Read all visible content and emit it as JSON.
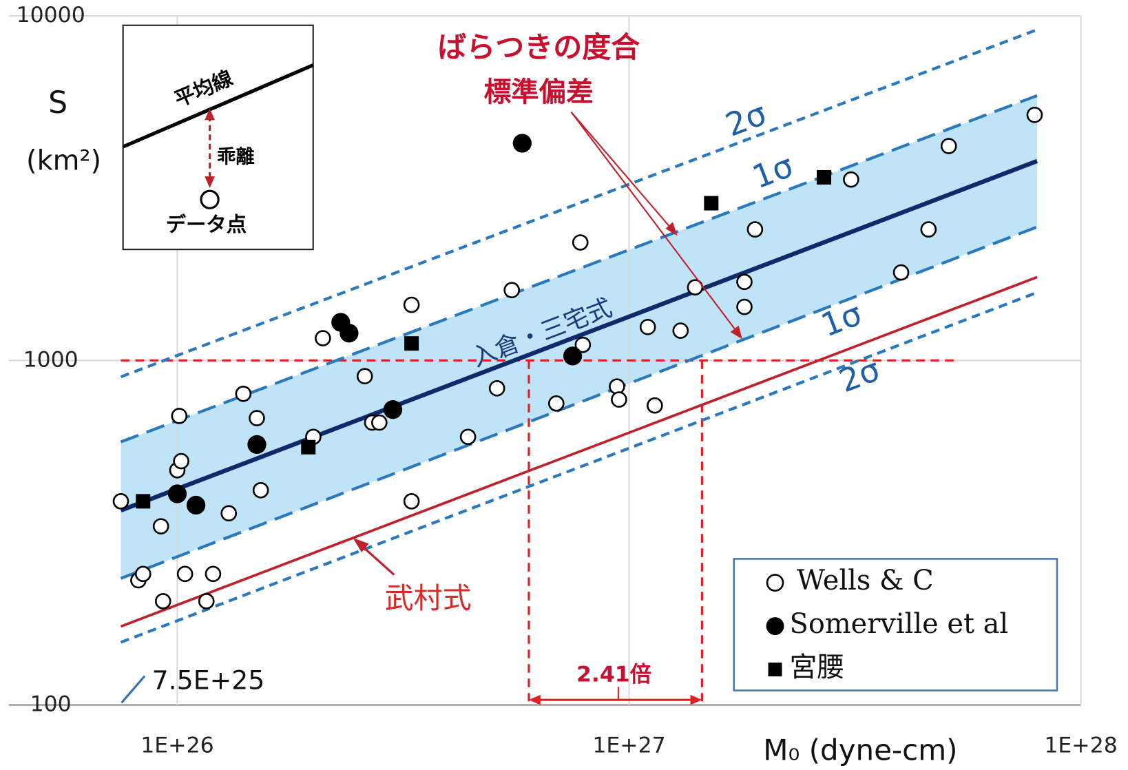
{
  "chart_data": {
    "type": "scatter",
    "log_x": true,
    "log_y": true,
    "grid": true,
    "xlim": [
      7.5e+25,
      1e+28
    ],
    "ylim": [
      100,
      10000
    ],
    "xticks": [
      {
        "value": 1e+26,
        "label": "1E+26"
      },
      {
        "value": 1e+27,
        "label": "1E+27"
      },
      {
        "value": 1e+28,
        "label": "1E+28"
      }
    ],
    "yticks": [
      100,
      1000,
      10000
    ],
    "xlabel": "M₀ (dyne-cm)",
    "ylabel": "S",
    "ylabel_unit": "(km²)",
    "series": [
      {
        "name": "Wells & C",
        "color": "#000000",
        "marker": "open-circle",
        "x": [
          7.5e+25,
          8.2e+25,
          8.4e+25,
          9.2e+25,
          9.3e+25,
          1e+26,
          1.02e+26,
          1.01e+26,
          1.04e+26,
          1.2e+26,
          1.16e+26,
          1.3e+26,
          1.4e+26,
          1.5e+26,
          1.53e+26,
          2e+26,
          2.1e+26,
          2.6e+26,
          2.7e+26,
          2.8e+26,
          3.3e+26,
          3.3e+26,
          4.4e+26,
          5.1e+26,
          5.5e+26,
          6.9e+26,
          7.8e+26,
          7.9e+26,
          9.4e+26,
          9.5e+26,
          1.1e+27,
          1.14e+27,
          1.3e+27,
          1.4e+27,
          1.8e+27,
          1.8e+27,
          1.9e+27,
          3.1e+27,
          4e+27,
          4.6e+27,
          5.1e+27,
          7.9e+27
        ],
        "values": [
          390,
          230,
          240,
          330,
          200,
          480,
          510,
          690,
          240,
          240,
          200,
          360,
          800,
          680,
          420,
          600,
          1160,
          900,
          660,
          660,
          1450,
          390,
          600,
          830,
          1600,
          750,
          2200,
          1110,
          840,
          770,
          1250,
          740,
          1220,
          1630,
          1690,
          1430,
          2400,
          3350,
          1800,
          2400,
          4190,
          5160
        ]
      },
      {
        "name": "Somerville et al",
        "color": "#000000",
        "marker": "filled-circle",
        "x": [
          1e+26,
          1.1e+26,
          1.5e+26,
          2.3e+26,
          2.4e+26,
          3e+26,
          5.8e+26,
          7.5e+26
        ],
        "values": [
          410,
          380,
          570,
          1290,
          1200,
          720,
          4270,
          1030
        ]
      },
      {
        "name": "宮腰",
        "color": "#000000",
        "marker": "square",
        "x": [
          8.4e+25,
          1.95e+26,
          3.3e+26,
          1.52e+27,
          2.7e+27
        ],
        "values": [
          390,
          560,
          1120,
          2860,
          3400
        ]
      }
    ],
    "lines": [
      {
        "label": "入倉・三宅式",
        "color": "#0d2a6b",
        "style": "solid",
        "x": [
          7.5e+25,
          8e+27
        ],
        "values": [
          367,
          3790
        ]
      },
      {
        "label": "1σ",
        "color": "#2a78bd",
        "style": "long-dash",
        "x": [
          7.5e+25,
          8e+27
        ],
        "values": [
          580,
          5870
        ]
      },
      {
        "label": "1σ",
        "color": "#2a78bd",
        "style": "long-dash",
        "x": [
          7.5e+25,
          8e+27
        ],
        "values": [
          233,
          2440
        ]
      },
      {
        "label": "2σ",
        "color": "#2a78bd",
        "style": "short-dash",
        "x": [
          7.5e+25,
          8e+27
        ],
        "values": [
          896,
          9120
        ]
      },
      {
        "label": "2σ",
        "color": "#2a78bd",
        "style": "short-dash",
        "x": [
          7.5e+25,
          8e+27
        ],
        "values": [
          152,
          1575
        ]
      },
      {
        "label": "武村式",
        "color": "#c0202a",
        "style": "solid",
        "x": [
          7.5e+25,
          8e+27
        ],
        "values": [
          169,
          1745
        ]
      }
    ],
    "band": {
      "color": "#bfe3f7",
      "lines": [
        1,
        2
      ]
    },
    "reference": {
      "color": "#e02020",
      "y": 1000,
      "hline_x": [
        7.5e+25,
        5.35e+27
      ],
      "x": [
        6e+26,
        1.45e+27
      ],
      "ratio_label": "2.41倍"
    },
    "annotations": {
      "spread": "ばらつきの度合",
      "stddev": "標準偏差",
      "xmin_note": "7.5E+25"
    },
    "inset": {
      "mean_line": "平均線",
      "deviation": "乖離",
      "data_point": "データ点"
    }
  }
}
